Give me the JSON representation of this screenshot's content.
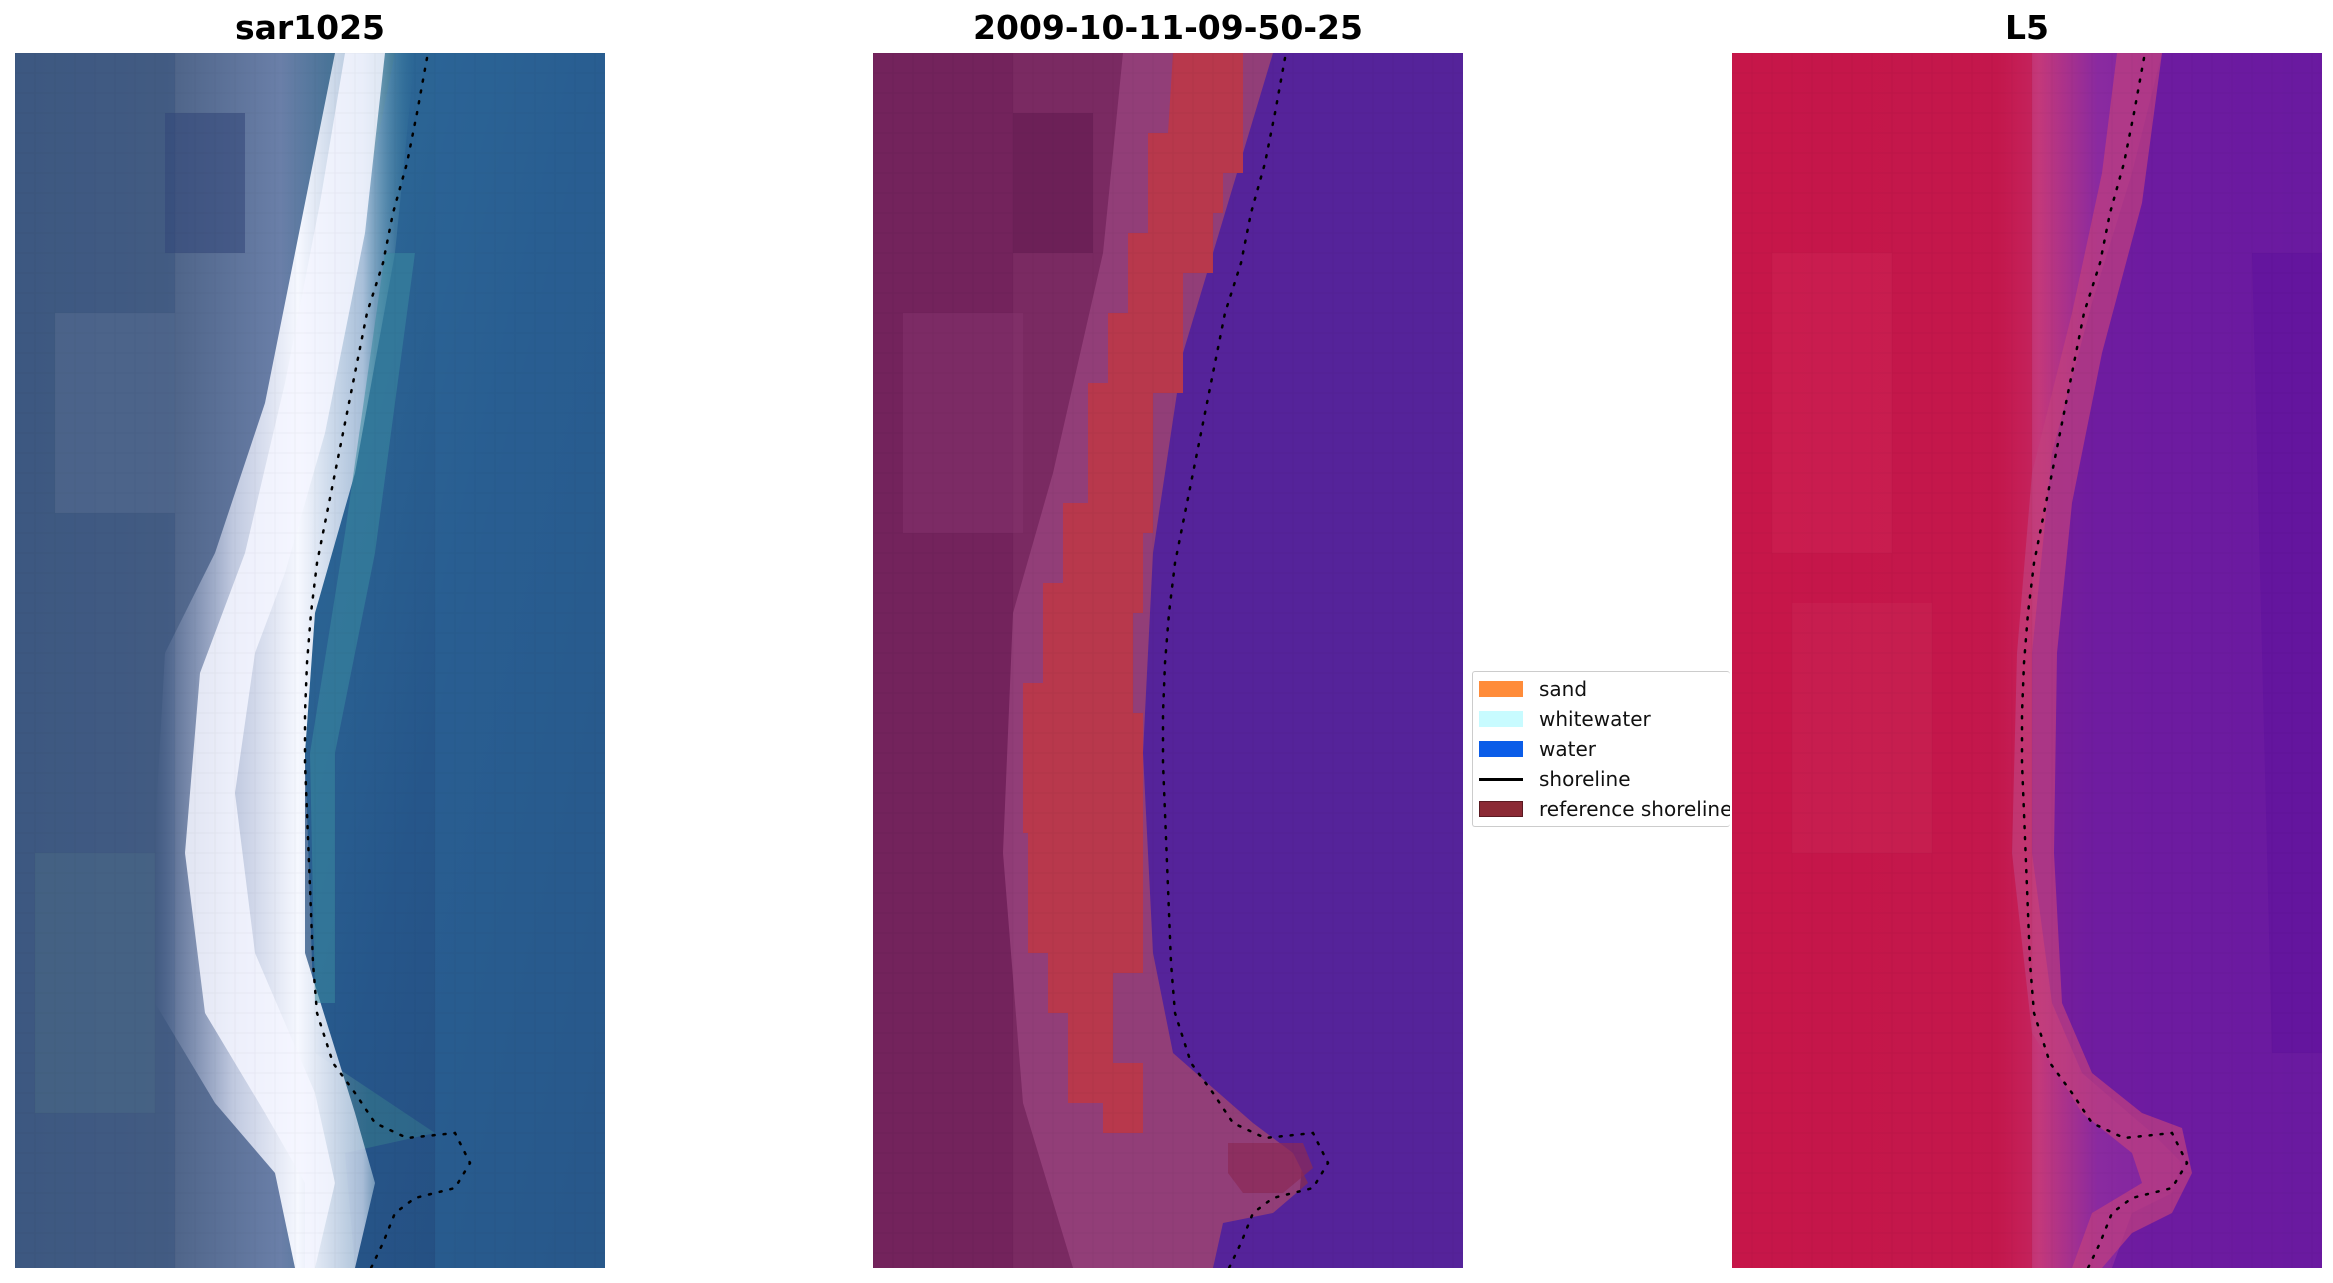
{
  "panels": [
    {
      "title": "sar1025"
    },
    {
      "title": "2009-10-11-09-50-25"
    },
    {
      "title": "L5"
    }
  ],
  "legend": {
    "items": [
      {
        "label": "sand",
        "color": "#ff8c3a",
        "kind": "patch"
      },
      {
        "label": "whitewater",
        "color": "#c8fbff",
        "kind": "patch"
      },
      {
        "label": "water",
        "color": "#0b5de8",
        "kind": "patch"
      },
      {
        "label": "shoreline",
        "color": "#000000",
        "kind": "line"
      },
      {
        "label": "reference shoreline",
        "color": "#8b2a35",
        "kind": "patch"
      }
    ]
  },
  "colors": {
    "rgb_water": "#2a5d8c",
    "rgb_land": "#4a6080",
    "rgb_surf": "#f4f8ff",
    "class_land": "#7a2a62",
    "class_sand": "#b8384c",
    "class_water": "#55239a",
    "index_land": "#c8194a",
    "index_water": "#6a1aa0",
    "shoreline_dots": "#000000"
  }
}
